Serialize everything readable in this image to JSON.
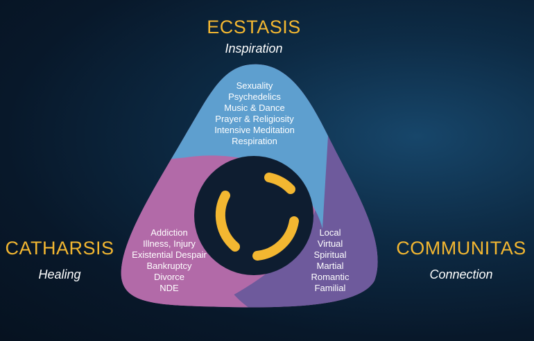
{
  "ecstasis": {
    "title": "ECSTASIS",
    "subtitle": "Inspiration",
    "items": [
      "Sexuality",
      "Psychedelics",
      "Music & Dance",
      "Prayer & Religiosity",
      "Intensive Meditation",
      "Respiration"
    ]
  },
  "catharsis": {
    "title": "CATHARSIS",
    "subtitle": "Healing",
    "items": [
      "Addiction",
      "Illness, Injury",
      "Existential Despair",
      "Bankruptcy",
      "Divorce",
      "NDE"
    ]
  },
  "communitas": {
    "title": "COMMUNITAS",
    "subtitle": "Connection",
    "items": [
      "Local",
      "Virtual",
      "Spiritual",
      "Martial",
      "Romantic",
      "Familial"
    ]
  },
  "colors": {
    "accent": "#f3b731",
    "ecstasis_lobe": "#5e9fcf",
    "catharsis_lobe": "#b26aa8",
    "communitas_lobe": "#6e5a9c",
    "center_circle": "#0e1d30"
  }
}
